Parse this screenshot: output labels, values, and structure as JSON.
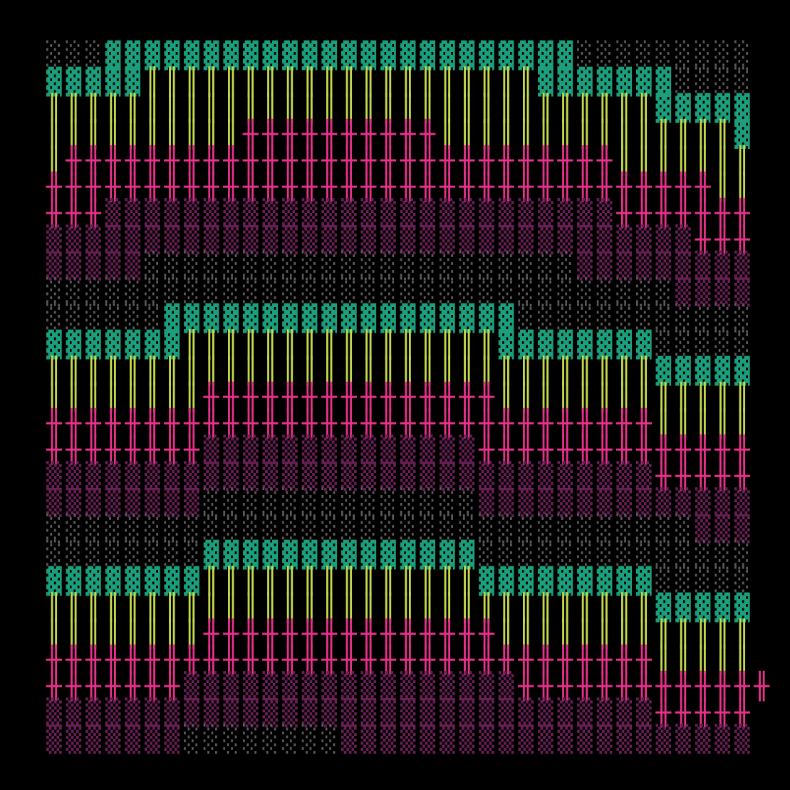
{
  "grid": {
    "palette": {
      "░": "#5c5c5c",
      "▓": "#1b9f7c",
      "║": "#c6d94c",
      "╫": "#e8318b",
      "▒": "#6b1f57"
    },
    "rows": [
      "░░░▓▓▓▓▓▓▓▓▓▓▓▓▓▓▓▓▓▓▓▓▓▓▓▓░░░░░░░░░",
      "▓▓▓▓▓║║║║║║║║║║║║║║║║║║║║▓▓▓▓▓▓▓░░░░",
      "║║║║║║║║║║║║║║║║║║║║║║║║║║║║║║║▓▓▓▓▓",
      "║║║║║║║║║║╫╫╫╫╫╫╫╫╫╫║║║║║║║║║║║║║║║▓",
      "║╫╫╫╫╫╫╫╫╫╫╫╫╫╫╫╫╫╫╫╫╫╫╫╫╫╫╫╫║║║║║║║",
      "╫╫╫╫╫╫╫╫╫╫╫╫╫╫╫╫╫╫╫╫╫╫╫╫╫╫╫╫╫╫╫╫╫╫║║",
      "╫╫╫▒▒▒▒▒▒▒▒▒▒▒▒▒▒▒▒▒▒▒▒▒▒▒▒▒▒╫╫╫╫╫╫╫",
      "▒▒▒▒▒▒▒▒▒▒▒▒▒▒▒▒▒▒▒▒▒▒▒▒▒▒▒▒▒▒▒▒▒╫╫╫",
      "▒▒▒▒▒░░░░░░░░░░░░░░░░░░░░░░▒▒▒▒▒▒▒▒▒",
      "░░░░░░░░░░░░░░░░░░░░░░░░░░░░░░░░▒▒▒▒",
      "░░░░░░▓▓▓▓▓▓▓▓▓▓▓▓▓▓▓▓▓▓░░░░░░░░░░░░",
      "▓▓▓▓▓▓▓║║║║║║║║║║║║║║║║▓▓▓▓▓▓▓▓░░░░░",
      "║║║║║║║║║║║║║║║║║║║║║║║║║║║║║║║▓▓▓▓▓",
      "║║║║║║║║╫╫╫╫╫╫╫╫╫╫╫╫╫╫╫║║║║║║║║║║║║║",
      "╫╫╫╫╫╫╫╫╫╫╫╫╫╫╫╫╫╫╫╫╫╫╫╫╫╫╫╫╫╫╫║║║║║",
      "╫╫╫╫╫╫╫╫▒▒▒▒▒▒▒▒▒▒▒▒▒▒╫╫╫╫╫╫╫╫╫╫╫╫╫╫",
      "▒▒▒▒▒▒▒▒▒▒▒▒▒▒▒▒▒▒▒▒▒▒▒▒▒▒▒▒▒▒▒╫╫╫╫╫",
      "▒▒▒▒▒▒▒▒░░░░░░░░░░░░░░▒▒▒▒▒▒▒▒▒▒▒▒▒▒",
      "░░░░░░░░░░░░░░░░░░░░░░░░░░░░░░░░░▒▒▒",
      "░░░░░░░░▓▓▓▓▓▓▓▓▓▓▓▓▓▓░░░░░░░░░░░░░░",
      "▓▓▓▓▓▓▓▓║║║║║║║║║║║║║║▓▓▓▓▓▓▓▓▓░░░░░",
      "║║║║║║║║║║║║║║║║║║║║║║║║║║║║║║║▓▓▓▓▓",
      "║║║║║║║║╫╫╫╫╫╫╫╫╫╫╫╫╫╫╫║║║║║║║║║║║║║",
      "╫╫╫╫╫╫╫╫╫╫╫╫╫╫╫╫╫╫╫╫╫╫╫╫╫╫╫╫╫╫╫║║║║║",
      "╫╫╫╫╫╫╫▒▒▒▒▒▒▒▒▒▒▒▒▒▒▒▒▒╫╫╫╫╫╫╫╫╫╫╫╫╫",
      "▒▒▒▒▒▒▒▒▒▒▒▒▒▒▒▒▒▒▒▒▒▒▒▒▒▒▒▒▒▒▒╫╫╫╫╫",
      "▒▒▒▒▒▒▒░░░░░░░░▒▒▒▒▒▒▒▒▒▒▒▒▒▒▒▒▒▒▒▒▒"
    ]
  }
}
